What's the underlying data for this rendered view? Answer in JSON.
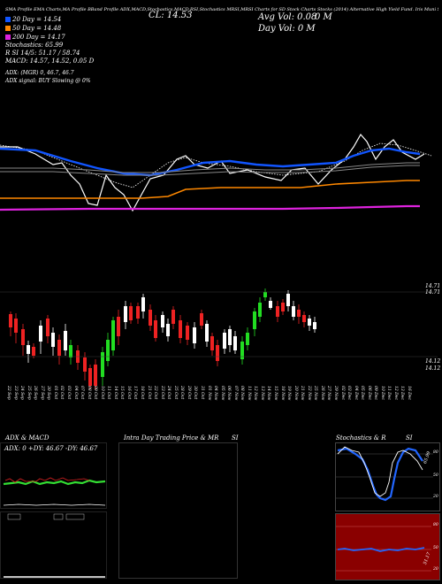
{
  "header": {
    "line1": "SMA Profile EMA Charts,MA Profile BBand Profile ADX,MACD,Stochastics,MACD,RSI,Stochastics MRSI,MRSI Charts for SD Stock Charts Stocks (2014) Alternative High Yield Fund. Iris Muni Stk Pub for Asset",
    "close_label": "CL: 14.53",
    "avg_vol": "Avg Vol: 0.08",
    "vol_m": "0   M",
    "day_vol": "Day Vol: 0   M"
  },
  "legend": {
    "ma20": {
      "label": "20   Day = 14.54",
      "color": "#1155ff"
    },
    "ma50": {
      "label": "50   Day = 14.48",
      "color": "#ff8800"
    },
    "ma200": {
      "label": "200   Day = 14.17",
      "color": "#dd22dd"
    },
    "stochastics": "Stochastics: 65.99",
    "rsi": "R             SI 14/5: 51.17 / 58.74",
    "macd": "MACD: 14.57,  14.52,  0.05   D",
    "adx": "ADX:                        (MGR) 0, 46.7, 46.7",
    "adx_signal": "ADX  signal:                        BUY Slowing @ 0%"
  },
  "price_axis": {
    "top": "14.71",
    "mid": "14.71",
    "low1": "14.12",
    "low2": "14.12"
  },
  "dates": [
    "22 Sep",
    "23 Sep",
    "24 Sep",
    "25 Sep",
    "26 Sep",
    "27 Sep",
    "30 Sep",
    "01 Oct",
    "02 Oct",
    "03 Oct",
    "04 Oct",
    "07 Oct",
    "08 Oct",
    "09 Oct",
    "10 Oct",
    "11 Oct",
    "14 Oct",
    "15 Oct",
    "16 Oct",
    "17 Oct",
    "18 Oct",
    "21 Oct",
    "22 Oct",
    "23 Oct",
    "24 Oct",
    "25 Oct",
    "28 Oct",
    "29 Oct",
    "30 Oct",
    "31 Oct",
    "01 Nov",
    "04 Nov",
    "05 Nov",
    "06 Nov",
    "07 Nov",
    "08 Nov",
    "11 Nov",
    "12 Nov",
    "13 Nov",
    "14 Nov",
    "15 Nov",
    "18 Nov",
    "19 Nov",
    "20 Nov",
    "21 Nov",
    "22 Nov",
    "25 Nov",
    "26 Nov",
    "27 Nov",
    "29 Nov",
    "02 Dec",
    "03 Dec",
    "04 Dec",
    "05 Dec",
    "06 Dec",
    "09 Dec",
    "10 Dec",
    "11 Dec",
    "12 Dec",
    "13 Dec",
    "16 Dec"
  ],
  "panels": {
    "adx_title": "ADX  & MACD",
    "adx_values": "ADX: 0  +DY: 46.67  -DY: 46.67",
    "intraday_title": "Intra  Day Trading Price  & MR",
    "intraday_si": "SI",
    "stoch_title": "Stochastics & R",
    "stoch_si": "SI",
    "stoch_value": "65.99",
    "stoch_80": "80",
    "stoch_50": "50",
    "stoch_20": "20",
    "rsi_80": "80",
    "rsi_50": "50",
    "rsi_20": "20",
    "rsi_value": "51.17"
  }
}
